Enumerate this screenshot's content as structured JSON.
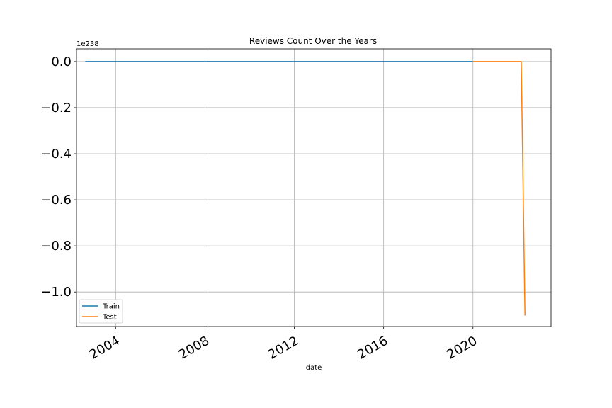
{
  "chart_data": {
    "type": "line",
    "title": "Reviews Count Over the Years",
    "xlabel": "date",
    "ylabel": "",
    "y_offset_label": "1e238",
    "x_ticks": [
      "2004",
      "2008",
      "2012",
      "2016",
      "2020"
    ],
    "y_ticks": [
      "0.0",
      "−0.2",
      "−0.4",
      "−0.6",
      "−0.8",
      "−1.0"
    ],
    "y_tick_values": [
      0.0,
      -0.2,
      -0.4,
      -0.6,
      -0.8,
      -1.0
    ],
    "xlim": [
      "2002-04-01",
      "2023-07-01"
    ],
    "ylim": [
      -1.15,
      0.055
    ],
    "y_scale_exponent": 238,
    "grid": true,
    "legend_position": "lower-left",
    "series": [
      {
        "name": "Train",
        "color": "#1f77b4",
        "points": [
          {
            "x": "2002-09-01",
            "y": 0.0
          },
          {
            "x": "2006-01-01",
            "y": 0.0
          },
          {
            "x": "2010-01-01",
            "y": 0.0
          },
          {
            "x": "2014-01-01",
            "y": 0.0
          },
          {
            "x": "2019-12-31",
            "y": 0.0
          }
        ]
      },
      {
        "name": "Test",
        "color": "#ff7f0e",
        "points": [
          {
            "x": "2020-01-01",
            "y": 0.0
          },
          {
            "x": "2022-03-01",
            "y": 0.0
          },
          {
            "x": "2022-05-01",
            "y": -1.1
          }
        ]
      }
    ]
  }
}
